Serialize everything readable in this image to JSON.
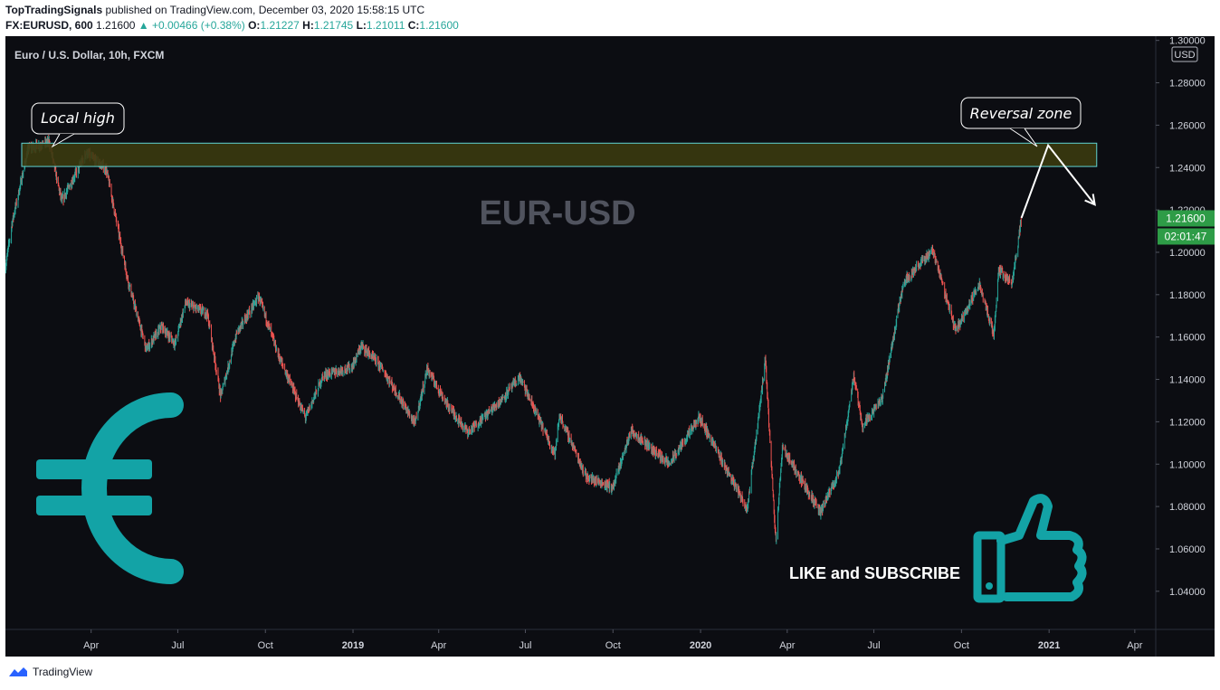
{
  "header": {
    "author": "TopTradingSignals",
    "published": "published on TradingView.com, December 03, 2020 15:58:15 UTC",
    "symbol": "FX:EURUSD, 600",
    "last": "1.21600",
    "change": "▲ +0.00466 (+0.38%)",
    "o_label": "O:",
    "o": "1.21227",
    "h_label": "H:",
    "h": "1.21745",
    "l_label": "L:",
    "l": "1.21011",
    "c_label": "C:",
    "c": "1.21600"
  },
  "footer": {
    "brand": "TradingView"
  },
  "colors": {
    "background": "#0c0d12",
    "up": "#26a69a",
    "down": "#ef5350",
    "zone": "#3a3a10",
    "zone_border": "#5fd3d3",
    "euro": "#13a3a6",
    "price_tag": "#2e9c47"
  },
  "chart_data": {
    "type": "candlestick",
    "title": "Euro / U.S. Dollar, 10h, FXCM",
    "watermark": "EUR-USD",
    "currency": "USD",
    "ylim": [
      1.022,
      1.302
    ],
    "y_ticks": [
      "1.30000",
      "1.28000",
      "1.26000",
      "1.24000",
      "1.22000",
      "1.20000",
      "1.18000",
      "1.16000",
      "1.14000",
      "1.12000",
      "1.10000",
      "1.08000",
      "1.06000",
      "1.04000"
    ],
    "x_ticks": [
      "Apr",
      "Jul",
      "Oct",
      "2019",
      "Apr",
      "Jul",
      "Oct",
      "2020",
      "Apr",
      "Jul",
      "Oct",
      "2021",
      "Apr"
    ],
    "price_path": [
      [
        "2018-01-01",
        1.193
      ],
      [
        "2018-01-08",
        1.214
      ],
      [
        "2018-01-25",
        1.249
      ],
      [
        "2018-02-16",
        1.252
      ],
      [
        "2018-03-01",
        1.224
      ],
      [
        "2018-03-27",
        1.247
      ],
      [
        "2018-04-17",
        1.239
      ],
      [
        "2018-05-10",
        1.186
      ],
      [
        "2018-05-29",
        1.154
      ],
      [
        "2018-06-14",
        1.165
      ],
      [
        "2018-06-28",
        1.157
      ],
      [
        "2018-07-09",
        1.176
      ],
      [
        "2018-08-01",
        1.171
      ],
      [
        "2018-08-15",
        1.132
      ],
      [
        "2018-09-01",
        1.162
      ],
      [
        "2018-09-24",
        1.179
      ],
      [
        "2018-10-15",
        1.151
      ],
      [
        "2018-11-12",
        1.122
      ],
      [
        "2018-12-01",
        1.142
      ],
      [
        "2018-12-31",
        1.146
      ],
      [
        "2019-01-10",
        1.156
      ],
      [
        "2019-02-01",
        1.145
      ],
      [
        "2019-03-07",
        1.119
      ],
      [
        "2019-03-20",
        1.145
      ],
      [
        "2019-04-10",
        1.128
      ],
      [
        "2019-05-02",
        1.115
      ],
      [
        "2019-06-05",
        1.13
      ],
      [
        "2019-06-25",
        1.141
      ],
      [
        "2019-08-01",
        1.105
      ],
      [
        "2019-08-06",
        1.123
      ],
      [
        "2019-09-03",
        1.094
      ],
      [
        "2019-10-01",
        1.089
      ],
      [
        "2019-10-20",
        1.116
      ],
      [
        "2019-11-29",
        1.1
      ],
      [
        "2019-12-31",
        1.122
      ],
      [
        "2020-02-19",
        1.079
      ],
      [
        "2020-03-09",
        1.149
      ],
      [
        "2020-03-20",
        1.064
      ],
      [
        "2020-03-27",
        1.108
      ],
      [
        "2020-05-06",
        1.077
      ],
      [
        "2020-05-26",
        1.097
      ],
      [
        "2020-06-10",
        1.142
      ],
      [
        "2020-06-19",
        1.118
      ],
      [
        "2020-07-10",
        1.131
      ],
      [
        "2020-08-01",
        1.186
      ],
      [
        "2020-09-01",
        1.201
      ],
      [
        "2020-09-25",
        1.163
      ],
      [
        "2020-10-20",
        1.185
      ],
      [
        "2020-11-04",
        1.161
      ],
      [
        "2020-11-09",
        1.192
      ],
      [
        "2020-11-23",
        1.185
      ],
      [
        "2020-12-03",
        1.216
      ]
    ],
    "annotations": {
      "zone": {
        "from": 1.2405,
        "to": 1.2515,
        "x_start": "2018-01-01",
        "x_end": "2021-02-20"
      },
      "local_high": {
        "text": "Local high",
        "x": "2018-02-16",
        "y": 1.2505
      },
      "reversal": {
        "text": "Reversal zone",
        "x": "2020-12-31",
        "y": 1.2505
      },
      "projection": [
        [
          "2020-12-03",
          1.2162
        ],
        [
          "2020-12-31",
          1.2505
        ],
        [
          "2021-02-18",
          1.2225
        ]
      ],
      "price_label": "1.21600",
      "countdown": "02:01:47",
      "cta": "LIKE and SUBSCRIBE"
    }
  }
}
